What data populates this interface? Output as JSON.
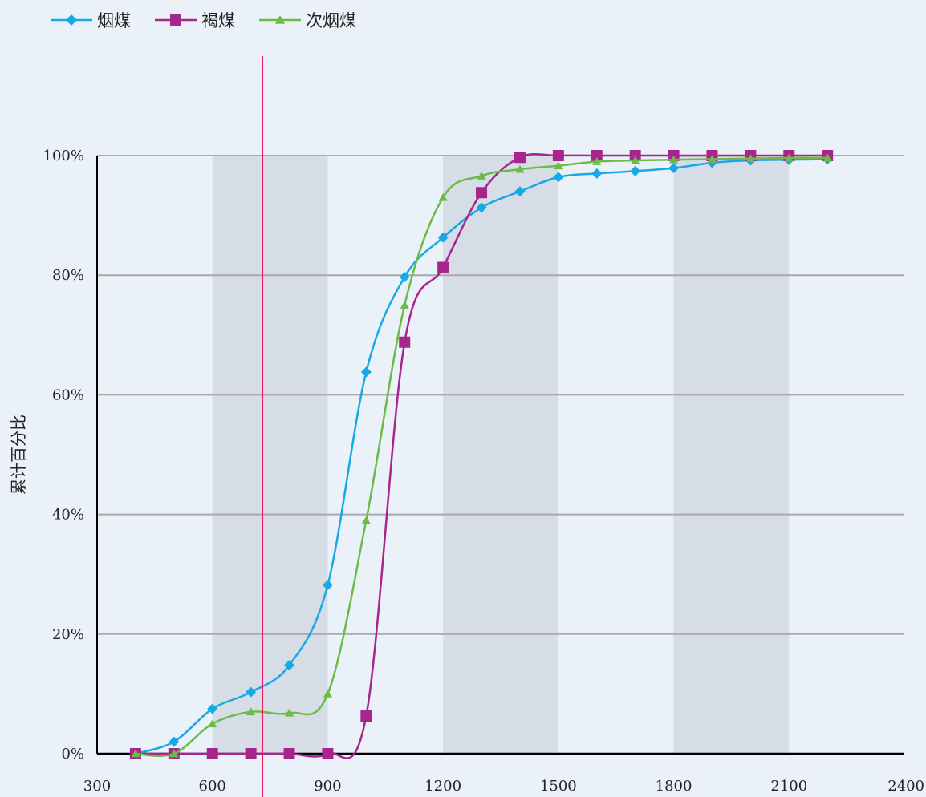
{
  "chart_data": {
    "type": "line",
    "ylabel": "累计百分比",
    "xlabel": "",
    "title": "",
    "xlim": [
      300,
      2400
    ],
    "ylim": [
      0,
      100
    ],
    "x_ticks": [
      "300",
      "600",
      "900",
      "1200",
      "1500",
      "1800",
      "2100",
      "2400"
    ],
    "y_ticks": [
      "0%",
      "20%",
      "40%",
      "60%",
      "80%",
      "100%"
    ],
    "legend_position": "top-left",
    "grid": true,
    "shaded_x_bands": [
      [
        600,
        900
      ],
      [
        1200,
        1500
      ],
      [
        1800,
        2100
      ]
    ],
    "vertical_reference_line_x": 730,
    "series": [
      {
        "name": "烟煤",
        "color": "#17a9e6",
        "marker": "diamond",
        "x": [
          400,
          500,
          600,
          700,
          800,
          900,
          1000,
          1100,
          1200,
          1300,
          1400,
          1500,
          1600,
          1700,
          1800,
          1900,
          2000,
          2100,
          2200
        ],
        "y": [
          0,
          2,
          7.5,
          10.3,
          14.8,
          28.2,
          63.8,
          79.7,
          86.3,
          91.3,
          94,
          96.4,
          97,
          97.4,
          97.9,
          98.8,
          99.2,
          99.3,
          99.4
        ]
      },
      {
        "name": "褐煤",
        "color": "#a8258e",
        "marker": "square",
        "x": [
          400,
          500,
          600,
          700,
          800,
          900,
          1000,
          1100,
          1200,
          1300,
          1400,
          1500,
          1600,
          1700,
          1800,
          1900,
          2000,
          2100,
          2200
        ],
        "y": [
          0,
          0,
          0,
          0,
          0,
          0,
          6.3,
          68.8,
          81.3,
          93.8,
          99.7,
          100,
          100,
          100,
          100,
          100,
          100,
          100,
          100
        ]
      },
      {
        "name": "次烟煤",
        "color": "#6cbb45",
        "marker": "triangle",
        "x": [
          400,
          500,
          600,
          700,
          800,
          900,
          1000,
          1100,
          1200,
          1300,
          1400,
          1500,
          1600,
          1700,
          1800,
          1900,
          2000,
          2100,
          2200
        ],
        "y": [
          0,
          0,
          5,
          7,
          6.8,
          10,
          39,
          75,
          93,
          96.6,
          97.7,
          98.3,
          99,
          99.2,
          99.3,
          99.4,
          99.5,
          99.6,
          99.6
        ]
      }
    ],
    "colors": {
      "background": "#eaf1f9",
      "band": "#d6dde6",
      "grid": "#a9a9a9",
      "axis": "#000000",
      "reference_line": "#e8175d"
    }
  }
}
